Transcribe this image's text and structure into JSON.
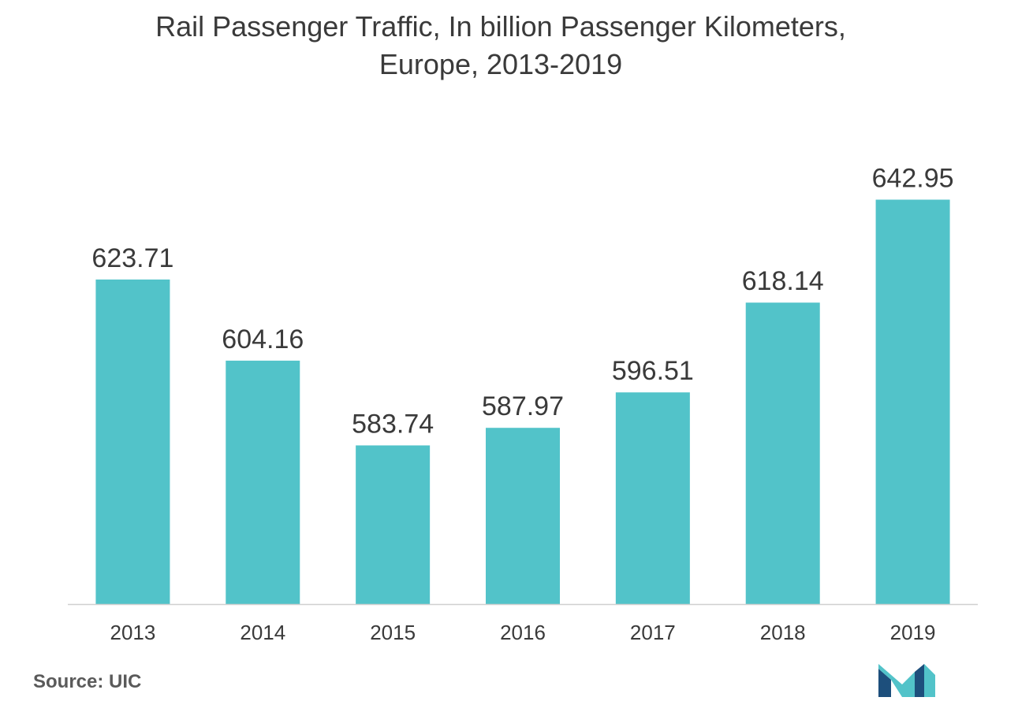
{
  "title_line1": "Rail Passenger Traffic, In billion Passenger Kilometers,",
  "title_line2": "Europe, 2013-2019",
  "source": "Source: UIC",
  "colors": {
    "bar": "#52c3c9",
    "axis": "#d0d0d0",
    "label": "#3a3a3a",
    "logo_dark": "#1d4f7c",
    "logo_light": "#52c3c9"
  },
  "logo_icon": "mordor-intelligence-logo",
  "chart_data": {
    "type": "bar",
    "title": "Rail Passenger Traffic, In billion Passenger Kilometers, Europe, 2013-2019",
    "categories": [
      "2013",
      "2014",
      "2015",
      "2016",
      "2017",
      "2018",
      "2019"
    ],
    "values": [
      623.71,
      604.16,
      583.74,
      587.97,
      596.51,
      618.14,
      642.95
    ],
    "value_labels": [
      "623.71",
      "604.16",
      "583.74",
      "587.97",
      "596.51",
      "618.14",
      "642.95"
    ],
    "xlabel": "",
    "ylabel": "",
    "ylim": [
      545.5,
      655
    ],
    "grid": false,
    "legend": "none"
  }
}
